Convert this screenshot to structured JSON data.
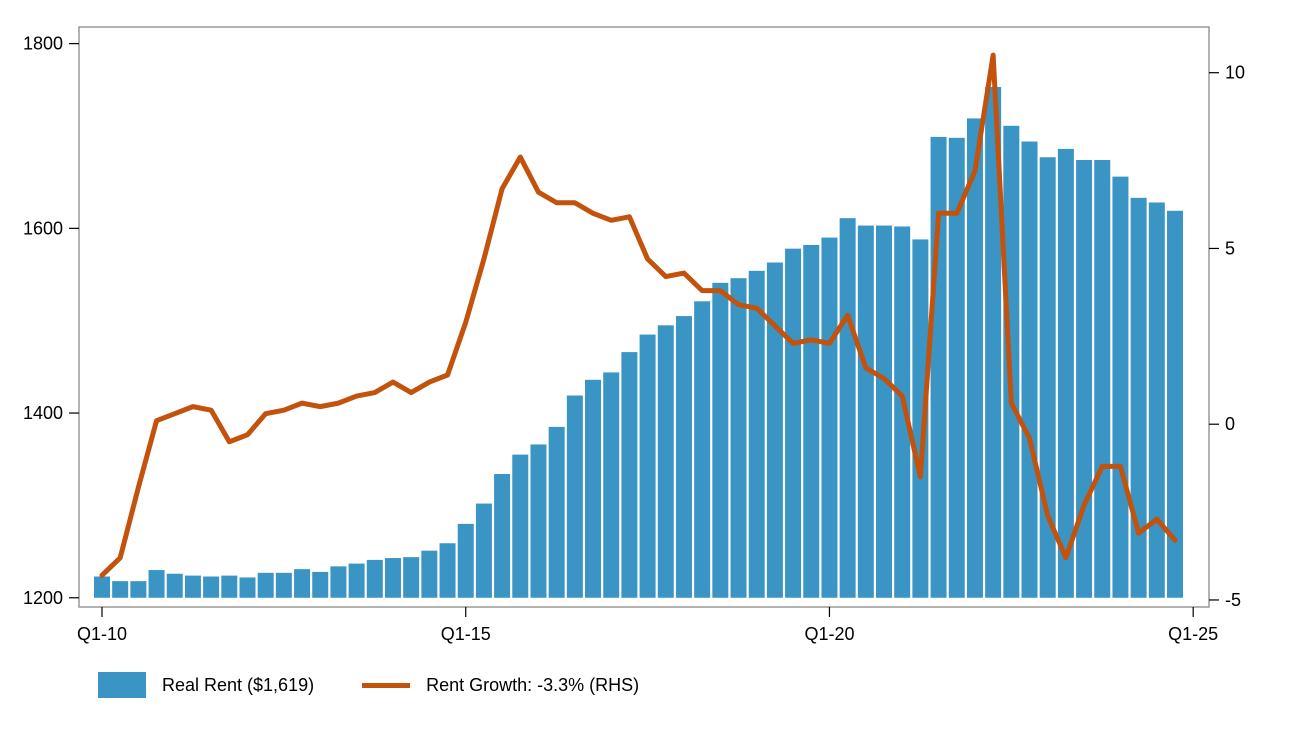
{
  "chart_data": {
    "type": "bar",
    "x_tick_labels": [
      "Q1-10",
      "Q1-15",
      "Q1-20",
      "Q1-25"
    ],
    "y_left": {
      "ylim": [
        1190,
        1818
      ],
      "ticks": [
        1200,
        1400,
        1600,
        1800
      ]
    },
    "y_right": {
      "ylim": [
        -5.2,
        11.3
      ],
      "ticks": [
        -5,
        0,
        5,
        10
      ]
    },
    "grid": false,
    "legend_position": "bottom-left",
    "colors": {
      "bar": "#3a94c4",
      "line": "#c2520c",
      "frame": "#999999"
    },
    "series": [
      {
        "name": "Real Rent ($1,619)",
        "type": "bar",
        "axis": "left",
        "values": [
          1223,
          1218,
          1218,
          1230,
          1226,
          1224,
          1223,
          1224,
          1222,
          1227,
          1227,
          1231,
          1228,
          1234,
          1237,
          1241,
          1243,
          1244,
          1251,
          1259,
          1280,
          1302,
          1334,
          1355,
          1366,
          1385,
          1419,
          1436,
          1444,
          1466,
          1485,
          1495,
          1505,
          1521,
          1541,
          1546,
          1554,
          1563,
          1578,
          1582,
          1590,
          1611,
          1603,
          1603,
          1602,
          1588,
          1699,
          1698,
          1719,
          1753,
          1711,
          1694,
          1677,
          1686,
          1674,
          1674,
          1656,
          1633,
          1628,
          1619
        ]
      },
      {
        "name": "Rent Growth: -3.3% (RHS)",
        "type": "line",
        "axis": "right",
        "values": [
          -4.3,
          -3.8,
          -1.8,
          0.1,
          0.3,
          0.5,
          0.4,
          -0.5,
          -0.3,
          0.3,
          0.4,
          0.6,
          0.5,
          0.6,
          0.8,
          0.9,
          1.2,
          0.9,
          1.2,
          1.4,
          2.9,
          4.7,
          6.7,
          7.6,
          6.6,
          6.3,
          6.3,
          6.0,
          5.8,
          5.9,
          4.7,
          4.2,
          4.3,
          3.8,
          3.8,
          3.4,
          3.3,
          2.8,
          2.3,
          2.4,
          2.3,
          3.1,
          1.6,
          1.3,
          0.8,
          -1.5,
          6.0,
          6.0,
          7.2,
          10.5,
          0.6,
          -0.4,
          -2.6,
          -3.8,
          -2.3,
          -1.2,
          -1.2,
          -3.1,
          -2.7,
          -3.3
        ]
      }
    ]
  }
}
